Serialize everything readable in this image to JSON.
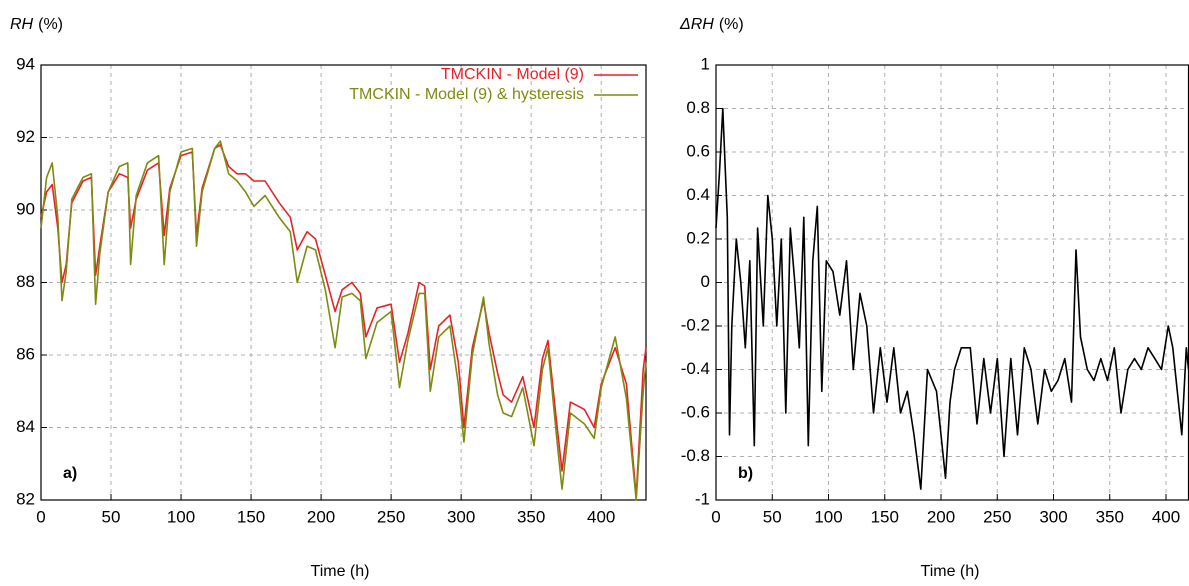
{
  "chart_data": [
    {
      "type": "line",
      "y_label_var": "RH",
      "y_label_unit": "(%)",
      "x_label": "Time (h)",
      "annotation": "a)",
      "xlim": [
        0,
        432
      ],
      "xticks": [
        0,
        50,
        100,
        150,
        200,
        250,
        300,
        350,
        400
      ],
      "ylim": [
        82,
        94
      ],
      "yticks": [
        82,
        84,
        86,
        88,
        90,
        92,
        94
      ],
      "grid": true,
      "legend": "upper right",
      "x": [
        0,
        4,
        8,
        12,
        15,
        18,
        22,
        30,
        36,
        39,
        42,
        48,
        56,
        62,
        64,
        68,
        76,
        84,
        88,
        92,
        100,
        108,
        111,
        115,
        124,
        128,
        134,
        140,
        146,
        152,
        160,
        170,
        178,
        183,
        190,
        196,
        203,
        210,
        215,
        222,
        228,
        232,
        240,
        250,
        256,
        262,
        270,
        274,
        278,
        284,
        292,
        298,
        302,
        308,
        316,
        320,
        326,
        330,
        336,
        344,
        352,
        358,
        362,
        368,
        372,
        378,
        388,
        395,
        400,
        410,
        418,
        425,
        430,
        432
      ],
      "series": [
        {
          "name": "TMCKIN - Model (9)",
          "color": "#e8222a",
          "values": [
            89.8,
            90.5,
            90.7,
            89.5,
            88.0,
            88.5,
            90.2,
            90.8,
            90.9,
            88.2,
            89.0,
            90.5,
            91.0,
            90.9,
            89.5,
            90.3,
            91.1,
            91.3,
            89.3,
            90.6,
            91.5,
            91.6,
            89.3,
            90.6,
            91.7,
            91.8,
            91.2,
            91.0,
            91.0,
            90.8,
            90.8,
            90.2,
            89.8,
            88.9,
            89.4,
            89.2,
            88.2,
            87.2,
            87.8,
            88.0,
            87.7,
            86.5,
            87.3,
            87.4,
            85.8,
            86.6,
            88.0,
            87.9,
            85.6,
            86.8,
            87.1,
            85.8,
            84.0,
            86.2,
            87.5,
            86.6,
            85.5,
            84.9,
            84.7,
            85.4,
            84.0,
            85.9,
            86.4,
            84.2,
            82.8,
            84.7,
            84.5,
            84.0,
            85.2,
            86.2,
            85.2,
            82.1,
            85.6,
            86.2
          ]
        },
        {
          "name": "TMCKIN - Model (9) & hysteresis",
          "color": "#7f8a10",
          "values": [
            89.5,
            90.9,
            91.3,
            89.8,
            87.5,
            88.3,
            90.3,
            90.9,
            91.0,
            87.4,
            88.8,
            90.5,
            91.2,
            91.3,
            88.5,
            90.4,
            91.3,
            91.5,
            88.5,
            90.5,
            91.6,
            91.7,
            89.0,
            90.5,
            91.7,
            91.9,
            91.0,
            90.8,
            90.5,
            90.1,
            90.4,
            89.8,
            89.4,
            88.0,
            89.0,
            88.9,
            87.8,
            86.2,
            87.6,
            87.7,
            87.5,
            85.9,
            86.9,
            87.2,
            85.1,
            86.4,
            87.7,
            87.7,
            85.0,
            86.5,
            86.8,
            85.2,
            83.6,
            86.0,
            87.6,
            86.3,
            84.9,
            84.4,
            84.3,
            85.1,
            83.5,
            85.6,
            86.2,
            83.8,
            82.3,
            84.4,
            84.1,
            83.7,
            85.1,
            86.5,
            84.8,
            82.0,
            85.0,
            85.8
          ]
        }
      ]
    },
    {
      "type": "line",
      "y_label_var": "ΔRH",
      "y_label_unit": "(%)",
      "x_label": "Time (h)",
      "annotation": "b)",
      "xlim": [
        0,
        420
      ],
      "xticks": [
        0,
        50,
        100,
        150,
        200,
        250,
        300,
        350,
        400
      ],
      "ylim": [
        -1,
        1
      ],
      "yticks": [
        -1,
        -0.8,
        -0.6,
        -0.4,
        -0.2,
        0,
        0.2,
        0.4,
        0.6,
        0.8,
        1
      ],
      "grid": true,
      "x": [
        0,
        3,
        6,
        8,
        10,
        12,
        14,
        18,
        22,
        26,
        30,
        34,
        37,
        42,
        46,
        50,
        54,
        58,
        62,
        66,
        70,
        74,
        78,
        82,
        86,
        90,
        94,
        98,
        104,
        110,
        116,
        122,
        128,
        134,
        140,
        146,
        152,
        158,
        164,
        170,
        176,
        182,
        188,
        196,
        204,
        208,
        212,
        218,
        226,
        232,
        238,
        244,
        250,
        256,
        262,
        268,
        274,
        280,
        286,
        292,
        298,
        304,
        310,
        316,
        320,
        324,
        330,
        336,
        342,
        348,
        354,
        360,
        366,
        372,
        378,
        384,
        390,
        396,
        402,
        406,
        410,
        414,
        418,
        420
      ],
      "series": [
        {
          "color": "#000000",
          "values": [
            0.25,
            0.5,
            0.8,
            0.55,
            0.3,
            -0.7,
            -0.2,
            0.2,
            0,
            -0.3,
            0.1,
            -0.75,
            0.25,
            -0.2,
            0.4,
            0.2,
            -0.2,
            0.2,
            -0.6,
            0.25,
            0,
            -0.3,
            0.3,
            -0.75,
            0.1,
            0.35,
            -0.5,
            0.1,
            0.05,
            -0.15,
            0.1,
            -0.4,
            -0.05,
            -0.2,
            -0.6,
            -0.3,
            -0.55,
            -0.3,
            -0.6,
            -0.5,
            -0.7,
            -0.95,
            -0.4,
            -0.5,
            -0.9,
            -0.55,
            -0.4,
            -0.3,
            -0.3,
            -0.65,
            -0.35,
            -0.6,
            -0.35,
            -0.8,
            -0.35,
            -0.7,
            -0.3,
            -0.4,
            -0.65,
            -0.4,
            -0.5,
            -0.45,
            -0.35,
            -0.55,
            0.15,
            -0.25,
            -0.4,
            -0.45,
            -0.35,
            -0.45,
            -0.3,
            -0.6,
            -0.4,
            -0.35,
            -0.4,
            -0.3,
            -0.35,
            -0.4,
            -0.2,
            -0.3,
            -0.5,
            -0.7,
            -0.3,
            -0.4
          ]
        }
      ]
    }
  ]
}
